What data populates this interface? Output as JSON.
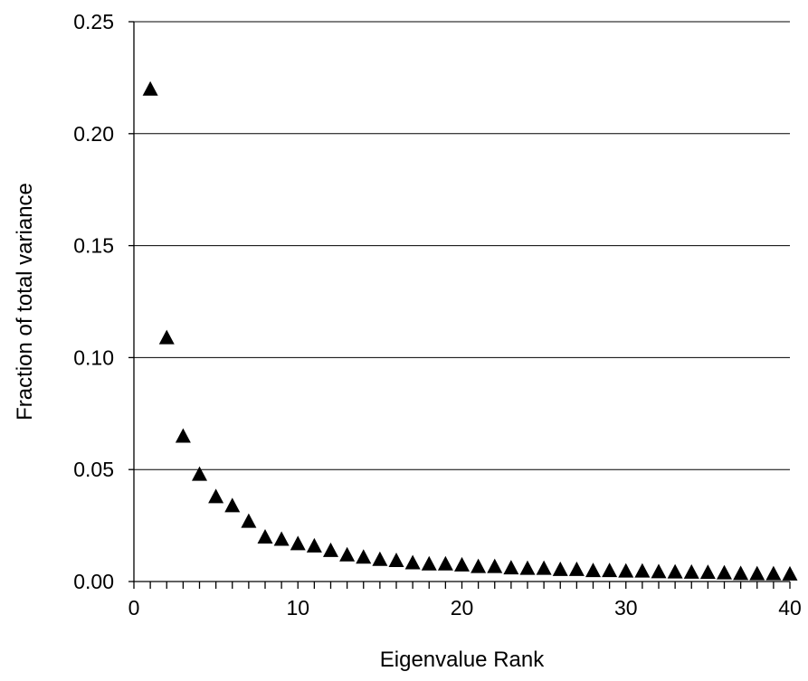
{
  "chart_data": {
    "type": "scatter",
    "title": "",
    "xlabel": "Eigenvalue Rank",
    "ylabel": "Fraction of total variance",
    "xlim": [
      0,
      40
    ],
    "ylim": [
      0,
      0.25
    ],
    "x_ticks": [
      0,
      10,
      20,
      30,
      40
    ],
    "x_tick_labels": [
      "0",
      "10",
      "20",
      "30",
      "40"
    ],
    "x_minor_tick_step": 1,
    "y_ticks": [
      0,
      0.05,
      0.1,
      0.15,
      0.2,
      0.25
    ],
    "y_tick_labels": [
      "0.00",
      "0.05",
      "0.10",
      "0.15",
      "0.20",
      "0.25"
    ],
    "grid": "horizontal",
    "legend": "none",
    "marker": "triangle",
    "marker_color": "#000000",
    "series": [
      {
        "x": [
          1,
          2,
          3,
          4,
          5,
          6,
          7,
          8,
          9,
          10,
          11,
          12,
          13,
          14,
          15,
          16,
          17,
          18,
          19,
          20,
          21,
          22,
          23,
          24,
          25,
          26,
          27,
          28,
          29,
          30,
          31,
          32,
          33,
          34,
          35,
          36,
          37,
          38,
          39,
          40
        ],
        "y": [
          0.22,
          0.109,
          0.065,
          0.048,
          0.038,
          0.034,
          0.027,
          0.02,
          0.019,
          0.017,
          0.016,
          0.014,
          0.012,
          0.011,
          0.01,
          0.0095,
          0.0085,
          0.008,
          0.008,
          0.0075,
          0.0068,
          0.0068,
          0.0062,
          0.006,
          0.006,
          0.0055,
          0.0055,
          0.005,
          0.005,
          0.0048,
          0.0048,
          0.0045,
          0.0044,
          0.0043,
          0.0042,
          0.004,
          0.0037,
          0.0036,
          0.0036,
          0.0035
        ]
      }
    ]
  }
}
